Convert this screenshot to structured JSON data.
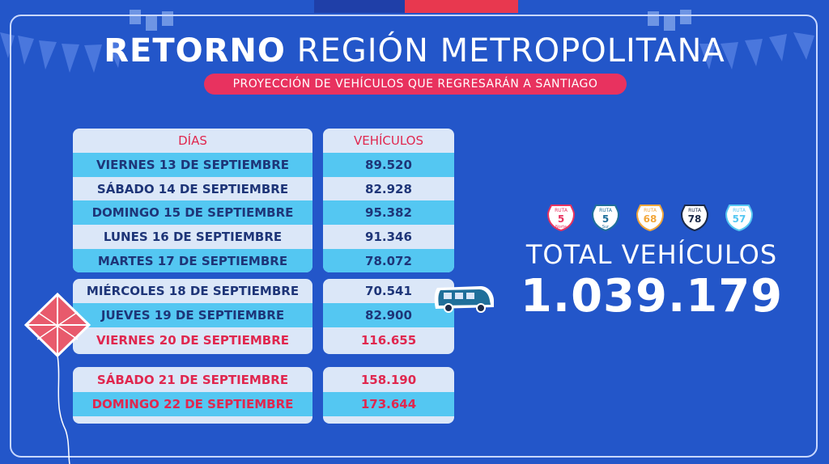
{
  "title_bold": "RETORNO",
  "title_rest": "REGIÓN METROPOLITANA",
  "subtitle": "PROYECCIÓN DE VEHÍCULOS QUE REGRESARÁN A SANTIAGO",
  "table": {
    "header_days": "DÍAS",
    "header_vehicles": "VEHÍCULOS",
    "group1": [
      {
        "day": "VIERNES 13 DE SEPTIEMBRE",
        "vehicles": "89.520"
      },
      {
        "day": "SÁBADO 14 DE SEPTIEMBRE",
        "vehicles": "82.928"
      },
      {
        "day": "DOMINGO 15 DE SEPTIEMBRE",
        "vehicles": "95.382"
      },
      {
        "day": "LUNES 16 DE SEPTIEMBRE",
        "vehicles": "91.346"
      },
      {
        "day": "MARTES 17 DE SEPTIEMBRE",
        "vehicles": "78.072"
      }
    ],
    "group2": [
      {
        "day": "MIÉRCOLES 18 DE SEPTIEMBRE",
        "vehicles": "70.541"
      },
      {
        "day": "JUEVES 19 DE SEPTIEMBRE",
        "vehicles": "82.900"
      },
      {
        "day": "VIERNES 20 DE SEPTIEMBRE",
        "vehicles": "116.655"
      }
    ],
    "group3": [
      {
        "day": "SÁBADO 21 DE SEPTIEMBRE",
        "vehicles": "158.190"
      },
      {
        "day": "DOMINGO 22 DE SEPTIEMBRE",
        "vehicles": "173.644"
      }
    ]
  },
  "shields": [
    {
      "word": "RUTA",
      "num": "5",
      "sub": "Norte",
      "color": "#e8325f"
    },
    {
      "word": "RUTA",
      "num": "5",
      "sub": "Sur",
      "color": "#1f6f9a"
    },
    {
      "word": "RUTA",
      "num": "68",
      "sub": "",
      "color": "#f2a63a"
    },
    {
      "word": "RUTA",
      "num": "78",
      "sub": "",
      "color": "#1b2a48"
    },
    {
      "word": "RUTA",
      "num": "57",
      "sub": "",
      "color": "#54c7f2"
    }
  ],
  "total_label": "TOTAL VEHÍCULOS",
  "total_value": "1.039.179",
  "colors": {
    "background": "#2356c9",
    "accent_red": "#e0274f",
    "accent_cyan": "#54c7f2",
    "text_navy": "#1e3578"
  }
}
